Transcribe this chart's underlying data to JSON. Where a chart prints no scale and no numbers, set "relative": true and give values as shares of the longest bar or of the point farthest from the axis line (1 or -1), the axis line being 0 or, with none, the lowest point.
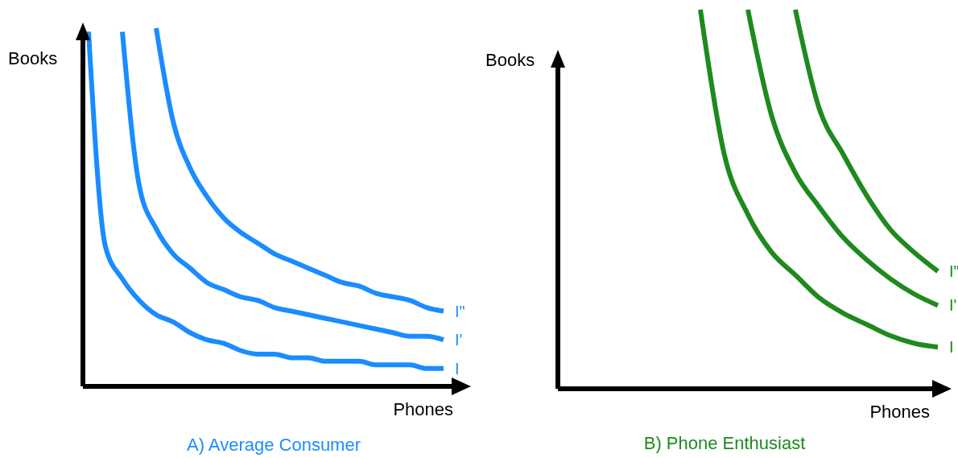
{
  "chart_data": [
    {
      "type": "line",
      "title": "A) Average Consumer",
      "xlabel": "Phones",
      "ylabel": "Books",
      "relative": true,
      "categories": [
        null,
        null,
        null,
        null,
        null,
        null,
        null,
        null,
        null,
        null,
        null,
        null,
        null,
        null,
        null,
        null,
        null,
        null,
        null,
        null,
        null,
        null
      ],
      "series": [
        {
          "name": "I",
          "color": "#1a8cff",
          "values": [
            0.99,
            0.39,
            0.3,
            0.24,
            0.2,
            0.18,
            0.15,
            0.13,
            0.12,
            0.1,
            0.09,
            0.09,
            0.08,
            0.08,
            0.07,
            0.07,
            0.07,
            0.06,
            0.06,
            0.06,
            0.05,
            0.05
          ]
        },
        {
          "name": "I'",
          "color": "#1a8cff",
          "values": [
            null,
            null,
            0.99,
            0.56,
            0.44,
            0.37,
            0.33,
            0.29,
            0.27,
            0.25,
            0.24,
            0.22,
            0.21,
            0.2,
            0.19,
            0.18,
            0.17,
            0.16,
            0.15,
            0.14,
            0.14,
            0.13
          ]
        },
        {
          "name": "I\"",
          "color": "#1a8cff",
          "values": [
            null,
            null,
            null,
            null,
            1.0,
            0.74,
            0.61,
            0.53,
            0.47,
            0.43,
            0.4,
            0.37,
            0.35,
            0.33,
            0.31,
            0.29,
            0.28,
            0.26,
            0.25,
            0.24,
            0.22,
            0.21
          ]
        }
      ]
    },
    {
      "type": "line",
      "title": "B) Phone Enthusiast",
      "xlabel": "Phones",
      "ylabel": "Books",
      "relative": true,
      "categories": [
        null,
        null,
        null,
        null,
        null,
        null,
        null,
        null,
        null,
        null,
        null,
        null,
        null,
        null,
        null,
        null,
        null
      ],
      "series": [
        {
          "name": "I",
          "color": "#1e8a1e",
          "values": [
            null,
            null,
            null,
            null,
            null,
            null,
            1.0,
            0.62,
            0.46,
            0.36,
            0.3,
            0.24,
            0.2,
            0.17,
            0.14,
            0.12,
            0.11
          ]
        },
        {
          "name": "I'",
          "color": "#1e8a1e",
          "values": [
            null,
            null,
            null,
            null,
            null,
            null,
            null,
            null,
            1.0,
            0.72,
            0.57,
            0.48,
            0.4,
            0.34,
            0.29,
            0.25,
            0.22
          ]
        },
        {
          "name": "I\"",
          "color": "#1e8a1e",
          "values": [
            null,
            null,
            null,
            null,
            null,
            null,
            null,
            null,
            null,
            null,
            1.0,
            0.74,
            0.62,
            0.51,
            0.42,
            0.36,
            0.31
          ]
        }
      ]
    }
  ]
}
